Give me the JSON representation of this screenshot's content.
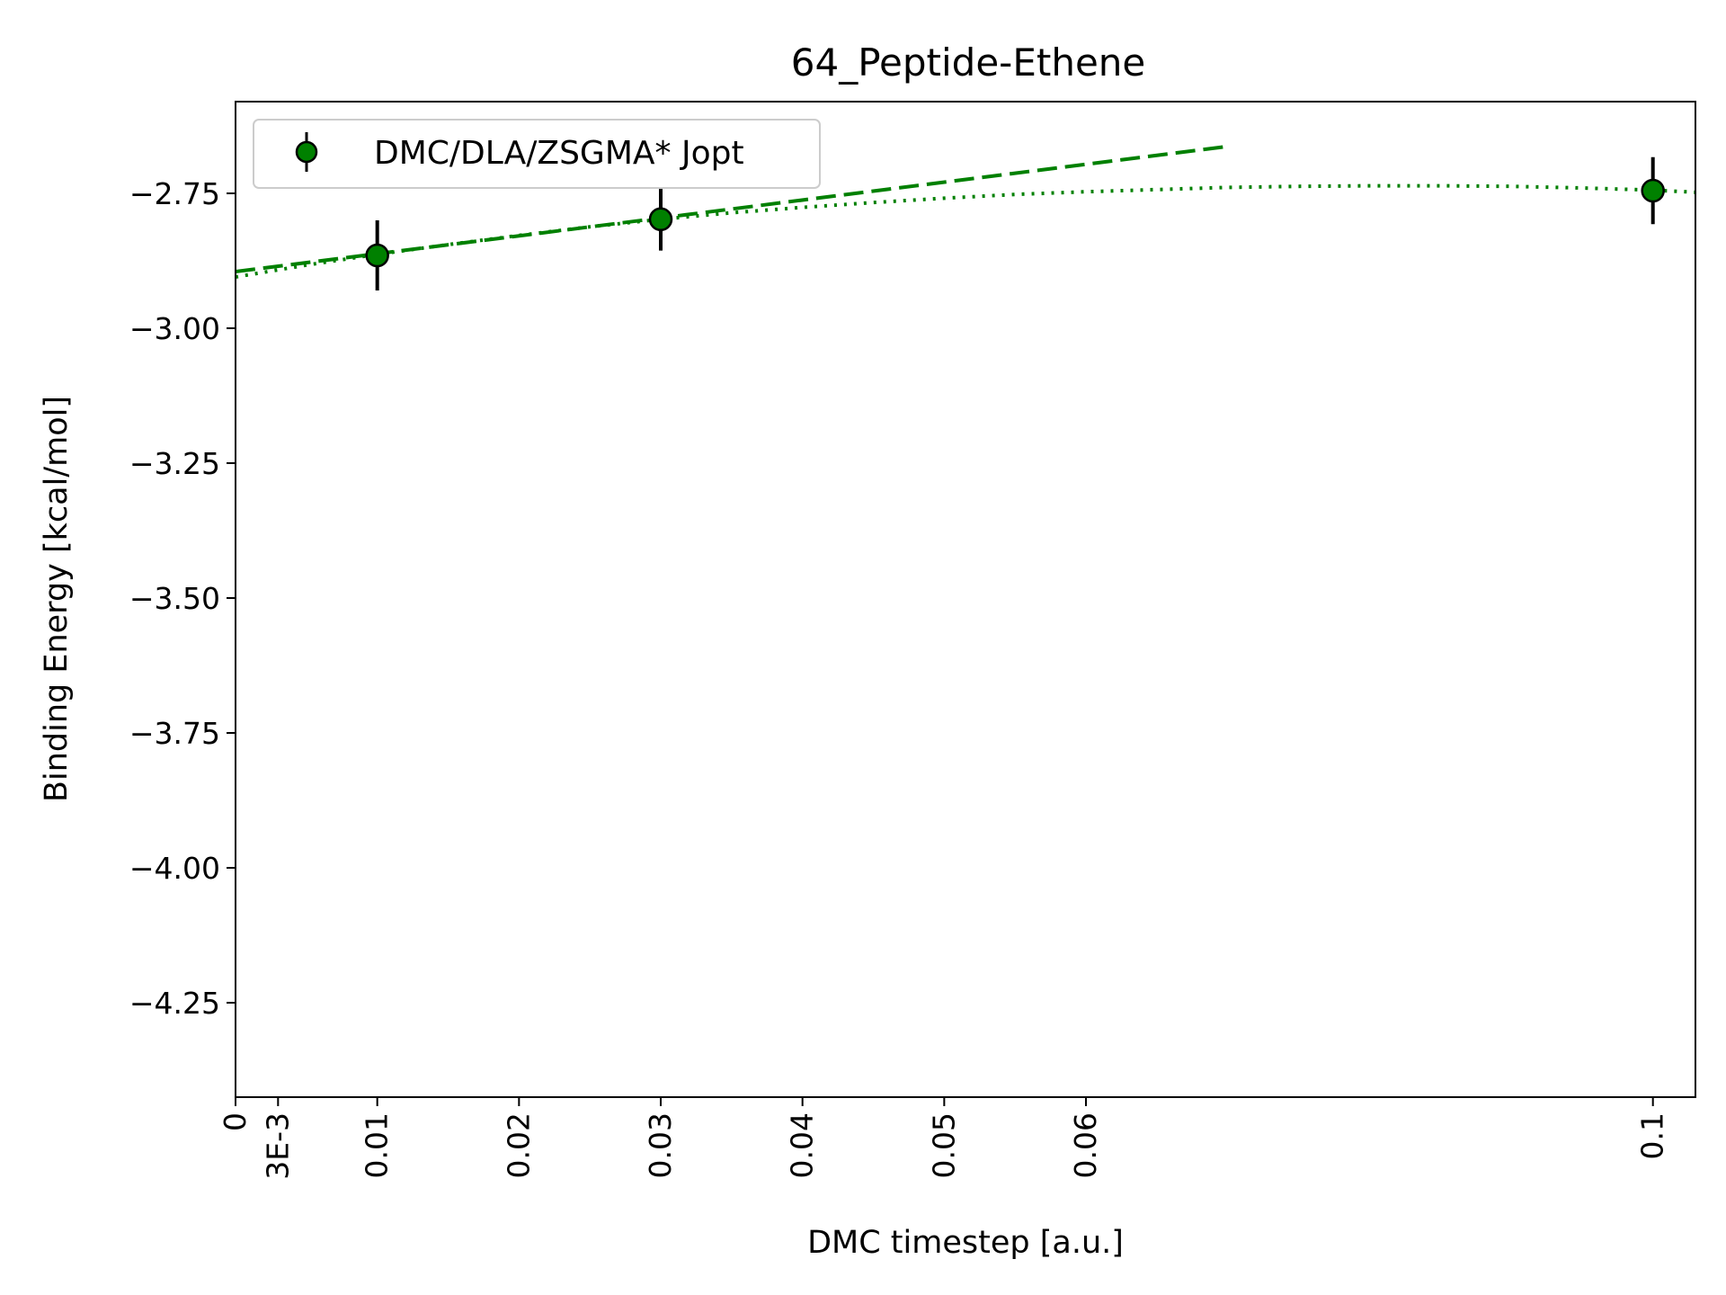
{
  "chart_data": {
    "type": "scatter",
    "title": "64_Peptide-Ethene",
    "xlabel": "DMC timestep [a.u.]",
    "ylabel": "Binding Energy [kcal/mol]",
    "xlim": [
      0,
      0.103
    ],
    "ylim": [
      -4.425,
      -2.58
    ],
    "x_ticks": [
      {
        "value": 0,
        "label": "0"
      },
      {
        "value": 0.003,
        "label": "3E-3"
      },
      {
        "value": 0.01,
        "label": "0.01"
      },
      {
        "value": 0.02,
        "label": "0.02"
      },
      {
        "value": 0.03,
        "label": "0.03"
      },
      {
        "value": 0.04,
        "label": "0.04"
      },
      {
        "value": 0.05,
        "label": "0.05"
      },
      {
        "value": 0.06,
        "label": "0.06"
      },
      {
        "value": 0.1,
        "label": "0.1"
      }
    ],
    "y_ticks": [
      {
        "value": -2.75,
        "label": "−2.75"
      },
      {
        "value": -3.0,
        "label": "−3.00"
      },
      {
        "value": -3.25,
        "label": "−3.25"
      },
      {
        "value": -3.5,
        "label": "−3.50"
      },
      {
        "value": -3.75,
        "label": "−3.75"
      },
      {
        "value": -4.0,
        "label": "−4.00"
      },
      {
        "value": -4.25,
        "label": "−4.25"
      }
    ],
    "series": [
      {
        "name": "DMC/DLA/ZSGMA* Jopt",
        "color": "#008000",
        "marker": "circle",
        "x": [
          0.01,
          0.03,
          0.1
        ],
        "y": [
          -2.865,
          -2.798,
          -2.745
        ],
        "yerr": [
          0.065,
          0.058,
          0.062
        ]
      }
    ],
    "fits": [
      {
        "style": "dashed",
        "color": "#008000",
        "x": [
          0,
          0.07
        ],
        "y": [
          -2.895,
          -2.663
        ]
      },
      {
        "style": "dotted",
        "color": "#008000",
        "x": [
          0,
          0.005,
          0.01,
          0.015,
          0.02,
          0.025,
          0.03,
          0.035,
          0.04,
          0.045,
          0.05,
          0.055,
          0.06,
          0.065,
          0.07,
          0.075,
          0.08,
          0.085,
          0.09,
          0.095,
          0.1,
          0.103
        ],
        "y": [
          -2.905,
          -2.883,
          -2.863,
          -2.845,
          -2.828,
          -2.812,
          -2.798,
          -2.786,
          -2.776,
          -2.767,
          -2.759,
          -2.752,
          -2.747,
          -2.743,
          -2.739,
          -2.737,
          -2.736,
          -2.736,
          -2.737,
          -2.74,
          -2.744,
          -2.748
        ]
      }
    ],
    "legend": {
      "placement": "upper-left"
    },
    "grid": false
  }
}
